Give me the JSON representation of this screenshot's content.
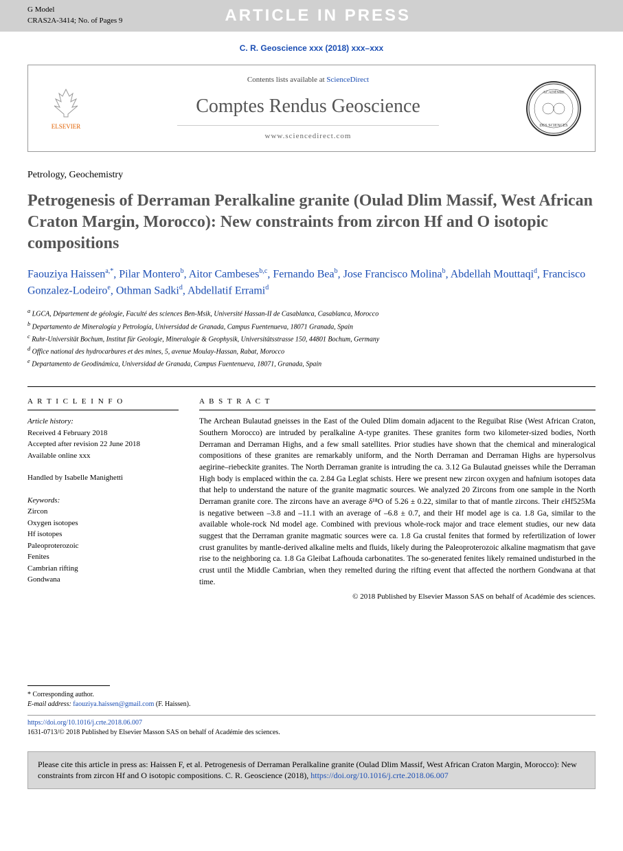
{
  "topbar": {
    "gmodel_line1": "G Model",
    "gmodel_line2": "CRAS2A-3414; No. of Pages 9",
    "aip": "ARTICLE IN PRESS"
  },
  "journal_ref": "C. R. Geoscience xxx (2018) xxx–xxx",
  "header": {
    "elsevier": "ELSEVIER",
    "contents_prefix": "Contents lists available at ",
    "contents_link": "ScienceDirect",
    "journal_name": "Comptes Rendus Geoscience",
    "url": "www.sciencedirect.com"
  },
  "category": "Petrology, Geochemistry",
  "title": "Petrogenesis of Derraman Peralkaline granite (Oulad Dlim Massif, West African Craton Margin, Morocco): New constraints from zircon Hf and O isotopic compositions",
  "authors_html": "Faouziya Haissen<sup>a,*</sup>, Pilar Montero<sup>b</sup>, Aitor Cambeses<sup>b,c</sup>, Fernando Bea<sup>b</sup>, Jose Francisco Molina<sup>b</sup>, Abdellah Mouttaqi<sup>d</sup>, Francisco Gonzalez-Lodeiro<sup>e</sup>, Othman Sadki<sup>d</sup>, Abdellatif Errami<sup>d</sup>",
  "affiliations": [
    "a LGCA, Département de géologie, Faculté des sciences Ben-Msik, Université Hassan-II de Casablanca, Casablanca, Morocco",
    "b Departamento de Mineralogía y Petrología, Universidad de Granada, Campus Fuentenueva, 18071 Granada, Spain",
    "c Ruhr-Universität Bochum, Institut für Geologie, Mineralogie & Geophysik, Universitätsstrasse 150, 44801 Bochum, Germany",
    "d Office national des hydrocarbures et des mines, 5, avenue Moulay-Hassan, Rabat, Morocco",
    "e Departamento de Geodinámica, Universidad de Granada, Campus Fuentenueva, 18071, Granada, Spain"
  ],
  "article_info": {
    "head": "A R T I C L E  I N F O",
    "history_label": "Article history:",
    "received": "Received 4 February 2018",
    "accepted": "Accepted after revision 22 June 2018",
    "online": "Available online xxx",
    "handled": "Handled by Isabelle Manighetti",
    "keywords_label": "Keywords:",
    "keywords": [
      "Zircon",
      "Oxygen isotopes",
      "Hf isotopes",
      "Paleoproterozoic",
      "Fenites",
      "Cambrian rifting",
      "Gondwana"
    ]
  },
  "abstract": {
    "head": "A B S T R A C T",
    "text": "The Archean Bulautad gneisses in the East of the Ouled Dlim domain adjacent to the Reguibat Rise (West African Craton, Southern Morocco) are intruded by peralkaline A-type granites. These granites form two kilometer-sized bodies, North Derraman and Derraman Highs, and a few small satellites. Prior studies have shown that the chemical and mineralogical compositions of these granites are remarkably uniform, and the North Derraman and Derraman Highs are hypersolvus aegirine–riebeckite granites. The North Derraman granite is intruding the ca. 3.12 Ga Bulautad gneisses while the Derraman High body is emplaced within the ca. 2.84 Ga Leglat schists. Here we present new zircon oxygen and hafnium isotopes data that help to understand the nature of the granite magmatic sources. We analyzed 20 Zircons from one sample in the North Derraman granite core. The zircons have an average δ¹⁸O of 5.26 ± 0.22, similar to that of mantle zircons. Their εHf525Ma is negative between –3.8 and –11.1 with an average of –6.8 ± 0.7, and their Hf model age is ca. 1.8 Ga, similar to the available whole-rock Nd model age. Combined with previous whole-rock major and trace element studies, our new data suggest that the Derraman granite magmatic sources were ca. 1.8 Ga crustal fenites that formed by refertilization of lower crust granulites by mantle-derived alkaline melts and fluids, likely during the Paleoproterozoic alkaline magmatism that gave rise to the neighboring ca. 1.8 Ga Gleibat Lafhouda carbonatites. The so-generated fenites likely remained undisturbed in the crust until the Middle Cambrian, when they remelted during the rifting event that affected the northern Gondwana at that time.",
    "copyright": "© 2018 Published by Elsevier Masson SAS on behalf of Académie des sciences."
  },
  "corresp": {
    "star": "* Corresponding author.",
    "email_label": "E-mail address:",
    "email": "faouziya.haissen@gmail.com",
    "email_suffix": "(F. Haissen)."
  },
  "doi": {
    "url": "https://doi.org/10.1016/j.crte.2018.06.007",
    "issn_line": "1631-0713/© 2018 Published by Elsevier Masson SAS on behalf of Académie des sciences."
  },
  "citebox": {
    "text": "Please cite this article in press as: Haissen F, et al. Petrogenesis of Derraman Peralkaline granite (Oulad Dlim Massif, West African Craton Margin, Morocco): New constraints from zircon Hf and O isotopic compositions. C. R. Geoscience (2018), ",
    "link": "https://doi.org/10.1016/j.crte.2018.06.007"
  }
}
